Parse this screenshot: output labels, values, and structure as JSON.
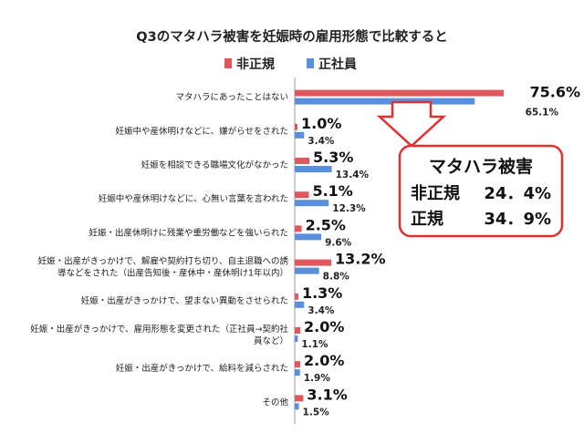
{
  "colors": {
    "irregular": "#e0585e",
    "regular": "#5a8fdc",
    "box_border": "#e03030",
    "arrow_fill": "#ffffff",
    "arrow_stroke": "#e03030"
  },
  "chart_data": {
    "type": "bar",
    "orientation": "horizontal",
    "title": "Q3のマタハラ被害を妊娠時の雇用形態で比較すると",
    "legend_placement": "top-left",
    "grid": false,
    "xlim": [
      0,
      100
    ],
    "categories": [
      [
        "マタハラにあったことはない"
      ],
      [
        "妊娠中や産休明けなどに、嫌がらせをされた"
      ],
      [
        "妊娠を相談できる職場文化がなかった"
      ],
      [
        "妊娠中や産休明けなどに、心無い言葉を言われた"
      ],
      [
        "妊娠・出産休明けに残業や重労働などを強いられた"
      ],
      [
        "妊娠・出産がきっかけで、解雇や契約打ち切り、自主退職への誘",
        "導などをされた（出産告知後・産休中・産休明け1年以内）"
      ],
      [
        "妊娠・出産がきっかけで、望まない異動をさせられた"
      ],
      [
        "妊娠・出産がきっかけで、雇用形態を変更された（正社員→契約社",
        "員など）"
      ],
      [
        "妊娠・出産がきっかけで、給料を減らされた"
      ],
      [
        "その他"
      ]
    ],
    "series": [
      {
        "name": "非正規",
        "values": [
          75.6,
          1.0,
          5.3,
          5.1,
          2.5,
          13.2,
          1.3,
          2.0,
          2.0,
          3.1
        ],
        "labels": [
          "75.6%",
          "1.0%",
          "5.3%",
          "5.1%",
          "2.5%",
          "13.2%",
          "1.3%",
          "2.0%",
          "2.0%",
          "3.1%"
        ]
      },
      {
        "name": "正社員",
        "values": [
          65.1,
          3.4,
          13.4,
          12.3,
          9.6,
          8.8,
          3.4,
          1.1,
          1.9,
          1.5
        ],
        "labels": [
          "65.1%",
          "3.4%",
          "13.4%",
          "12.3%",
          "9.6%",
          "8.8%",
          "3.4%",
          "1.1%",
          "1.9%",
          "1.5%"
        ]
      }
    ]
  },
  "callout": {
    "title": "マタハラ被害",
    "rows": [
      {
        "label": "非正規",
        "value": "24．4%"
      },
      {
        "label": "正規",
        "value": "34．9%"
      }
    ]
  }
}
